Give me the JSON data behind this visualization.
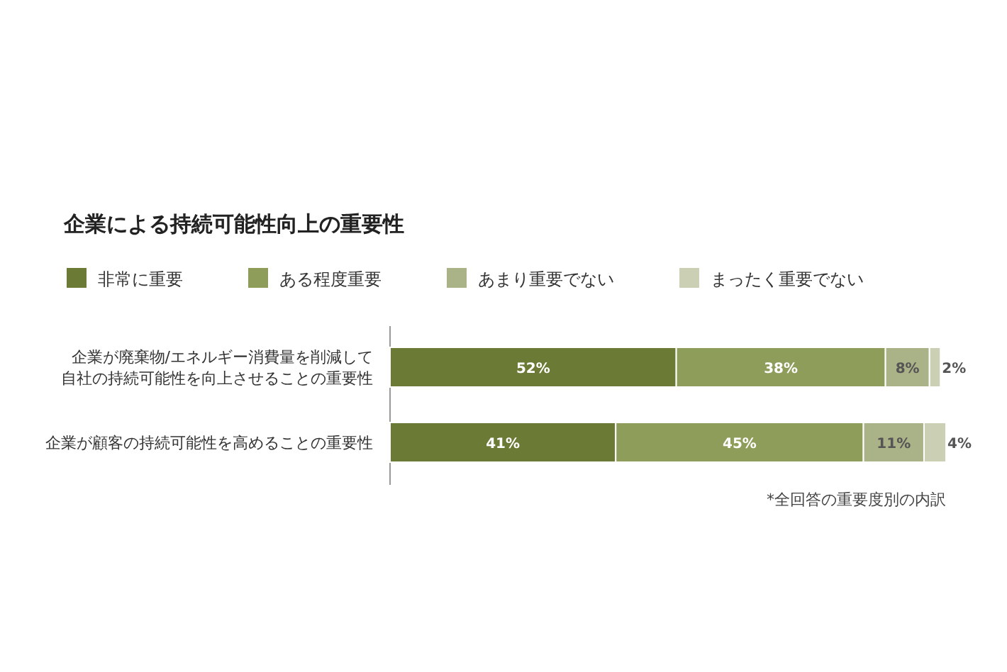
{
  "chart_data": {
    "type": "bar",
    "orientation": "horizontal",
    "stacked": true,
    "legend": "top left",
    "title": "企業による持続可能性向上の重要性",
    "categories": [
      "企業が廃棄物/エネルギー消費量を削減して自社の持続可能性を向上させることの重要性",
      "企業が顧客の持続可能性を高めることの重要性"
    ],
    "series": [
      {
        "name": "非常に重要",
        "color": "#6b7a34",
        "values": [
          52,
          41
        ],
        "value_labels": [
          "52%",
          "41%"
        ]
      },
      {
        "name": "ある程度重要",
        "color": "#8f9d5a",
        "values": [
          38,
          45
        ],
        "value_labels": [
          "38%",
          "45%"
        ]
      },
      {
        "name": "あまり重要でない",
        "color": "#aab387",
        "values": [
          8,
          11
        ],
        "value_labels": [
          "8%",
          "11%"
        ]
      },
      {
        "name": "まったく重要でない",
        "color": "#cbcfb3",
        "values": [
          2,
          4
        ],
        "value_labels": [
          "2%",
          "4%"
        ]
      }
    ],
    "annotations": [
      "*全回答の重要度別の内訳"
    ]
  }
}
